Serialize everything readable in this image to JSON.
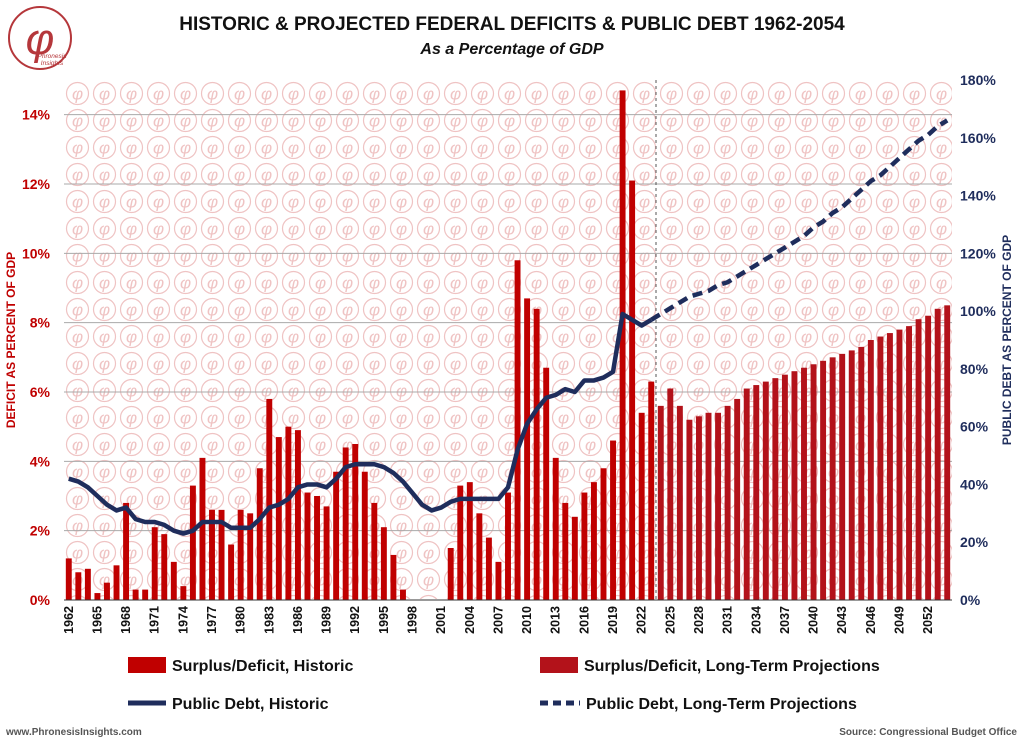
{
  "chart_data": {
    "type": "bar",
    "title": "HISTORIC & PROJECTED FEDERAL DEFICITS & PUBLIC DEBT 1962-2054",
    "subtitle": "As a Percentage of GDP",
    "ylabel": "DEFICIT AS PERCENT OF GDP",
    "y2label": "PUBLIC DEBT AS PERCENT OF GDP",
    "ylim": [
      0,
      15
    ],
    "y2lim": [
      0,
      180
    ],
    "left_ticks": [
      {
        "v": 0,
        "label": "0%"
      },
      {
        "v": 2,
        "label": "2%"
      },
      {
        "v": 4,
        "label": "4%"
      },
      {
        "v": 6,
        "label": "6%"
      },
      {
        "v": 8,
        "label": "8%"
      },
      {
        "v": 10,
        "label": "10%"
      },
      {
        "v": 12,
        "label": "12%"
      },
      {
        "v": 14,
        "label": "14%"
      }
    ],
    "right_ticks": [
      {
        "v": 0,
        "label": "0%"
      },
      {
        "v": 20,
        "label": "20%"
      },
      {
        "v": 40,
        "label": "40%"
      },
      {
        "v": 60,
        "label": "60%"
      },
      {
        "v": 80,
        "label": "80%"
      },
      {
        "v": 100,
        "label": "100%"
      },
      {
        "v": 120,
        "label": "120%"
      },
      {
        "v": 140,
        "label": "140%"
      },
      {
        "v": 160,
        "label": "160%"
      },
      {
        "v": 180,
        "label": "180%"
      }
    ],
    "x_start": 1962,
    "x_end": 2054,
    "x_tick_labels": [
      "1962",
      "1965",
      "1968",
      "1971",
      "1974",
      "1977",
      "1980",
      "1983",
      "1986",
      "1989",
      "1992",
      "1995",
      "1998",
      "2001",
      "2004",
      "2007",
      "2010",
      "2013",
      "2016",
      "2019",
      "2022",
      "2025",
      "2028",
      "2031",
      "2034",
      "2037",
      "2040",
      "2043",
      "2046",
      "2049",
      "2052"
    ],
    "projection_start": 2024,
    "series": [
      {
        "name": "Surplus/Deficit, Historic",
        "kind": "bar",
        "color": "#c00000",
        "x": [
          1962,
          1963,
          1964,
          1965,
          1966,
          1967,
          1968,
          1969,
          1970,
          1971,
          1972,
          1973,
          1974,
          1975,
          1976,
          1977,
          1978,
          1979,
          1980,
          1981,
          1982,
          1983,
          1984,
          1985,
          1986,
          1987,
          1988,
          1989,
          1990,
          1991,
          1992,
          1993,
          1994,
          1995,
          1996,
          1997,
          1998,
          1999,
          2000,
          2001,
          2002,
          2003,
          2004,
          2005,
          2006,
          2007,
          2008,
          2009,
          2010,
          2011,
          2012,
          2013,
          2014,
          2015,
          2016,
          2017,
          2018,
          2019,
          2020,
          2021,
          2022,
          2023
        ],
        "values": [
          1.2,
          0.8,
          0.9,
          0.2,
          0.5,
          1.0,
          2.8,
          0.3,
          0.3,
          2.1,
          1.9,
          1.1,
          0.4,
          3.3,
          4.1,
          2.6,
          2.6,
          1.6,
          2.6,
          2.5,
          3.8,
          5.8,
          4.7,
          5.0,
          4.9,
          3.1,
          3.0,
          2.7,
          3.7,
          4.4,
          4.5,
          3.7,
          2.8,
          2.1,
          1.3,
          0.3,
          0.0,
          0.0,
          0.0,
          0.0,
          1.5,
          3.3,
          3.4,
          2.5,
          1.8,
          1.1,
          3.1,
          9.8,
          8.7,
          8.4,
          6.7,
          4.1,
          2.8,
          2.4,
          3.1,
          3.4,
          3.8,
          4.6,
          14.7,
          12.1,
          5.4,
          6.3
        ]
      },
      {
        "name": "Surplus/Deficit, Long-Term Projections",
        "kind": "bar",
        "color": "#b3121a",
        "x": [
          2024,
          2025,
          2026,
          2027,
          2028,
          2029,
          2030,
          2031,
          2032,
          2033,
          2034,
          2035,
          2036,
          2037,
          2038,
          2039,
          2040,
          2041,
          2042,
          2043,
          2044,
          2045,
          2046,
          2047,
          2048,
          2049,
          2050,
          2051,
          2052,
          2053,
          2054
        ],
        "values": [
          5.6,
          6.1,
          5.6,
          5.2,
          5.3,
          5.4,
          5.4,
          5.6,
          5.8,
          6.1,
          6.2,
          6.3,
          6.4,
          6.5,
          6.6,
          6.7,
          6.8,
          6.9,
          7.0,
          7.1,
          7.2,
          7.3,
          7.5,
          7.6,
          7.7,
          7.8,
          7.9,
          8.1,
          8.2,
          8.4,
          8.5
        ]
      },
      {
        "name": "Public Debt, Historic",
        "kind": "line",
        "color": "#1f2d5c",
        "axis": "right",
        "x": [
          1962,
          1963,
          1964,
          1965,
          1966,
          1967,
          1968,
          1969,
          1970,
          1971,
          1972,
          1973,
          1974,
          1975,
          1976,
          1977,
          1978,
          1979,
          1980,
          1981,
          1982,
          1983,
          1984,
          1985,
          1986,
          1987,
          1988,
          1989,
          1990,
          1991,
          1992,
          1993,
          1994,
          1995,
          1996,
          1997,
          1998,
          1999,
          2000,
          2001,
          2002,
          2003,
          2004,
          2005,
          2006,
          2007,
          2008,
          2009,
          2010,
          2011,
          2012,
          2013,
          2014,
          2015,
          2016,
          2017,
          2018,
          2019,
          2020,
          2021,
          2022,
          2023
        ],
        "values": [
          42,
          41,
          39,
          36,
          33,
          31,
          32,
          28,
          27,
          27,
          26,
          24,
          23,
          24,
          27,
          27,
          27,
          25,
          25,
          25,
          28,
          32,
          33,
          35,
          39,
          40,
          40,
          39,
          42,
          46,
          47,
          47,
          47,
          46,
          44,
          41,
          37,
          33,
          31,
          32,
          34,
          35,
          35,
          35,
          35,
          35,
          39,
          52,
          61,
          66,
          70,
          71,
          73,
          72,
          76,
          76,
          77,
          79,
          99,
          97,
          95,
          97
        ]
      },
      {
        "name": "Public Debt, Long-Term Projections",
        "kind": "line",
        "dashed": true,
        "color": "#1f2d5c",
        "axis": "right",
        "x": [
          2024,
          2025,
          2026,
          2027,
          2028,
          2029,
          2030,
          2031,
          2032,
          2033,
          2034,
          2035,
          2036,
          2037,
          2038,
          2039,
          2040,
          2041,
          2042,
          2043,
          2044,
          2045,
          2046,
          2047,
          2048,
          2049,
          2050,
          2051,
          2052,
          2053,
          2054
        ],
        "values": [
          99,
          101,
          103,
          105,
          106,
          107,
          109,
          110,
          112,
          114,
          116,
          118,
          120,
          122,
          124,
          126,
          129,
          131,
          134,
          136,
          139,
          142,
          145,
          147,
          150,
          153,
          156,
          159,
          161,
          164,
          166
        ]
      }
    ],
    "legend_placement": "bottom"
  },
  "legend": {
    "historic_bars": "Surplus/Deficit, Historic",
    "projected_bars": "Surplus/Deficit, Long-Term Projections",
    "historic_debt": "Public Debt, Historic",
    "projected_debt": "Public Debt, Long-Term Projections"
  },
  "footer": {
    "website": "www.PhronesisInsights.com",
    "source": "Source: Congressional Budget Office"
  },
  "logo": {
    "symbol": "φ",
    "name_line1": "Phronesis",
    "name_line2": "Insights"
  },
  "colors": {
    "deficit": "#c00000",
    "debt": "#1f2d5c"
  }
}
